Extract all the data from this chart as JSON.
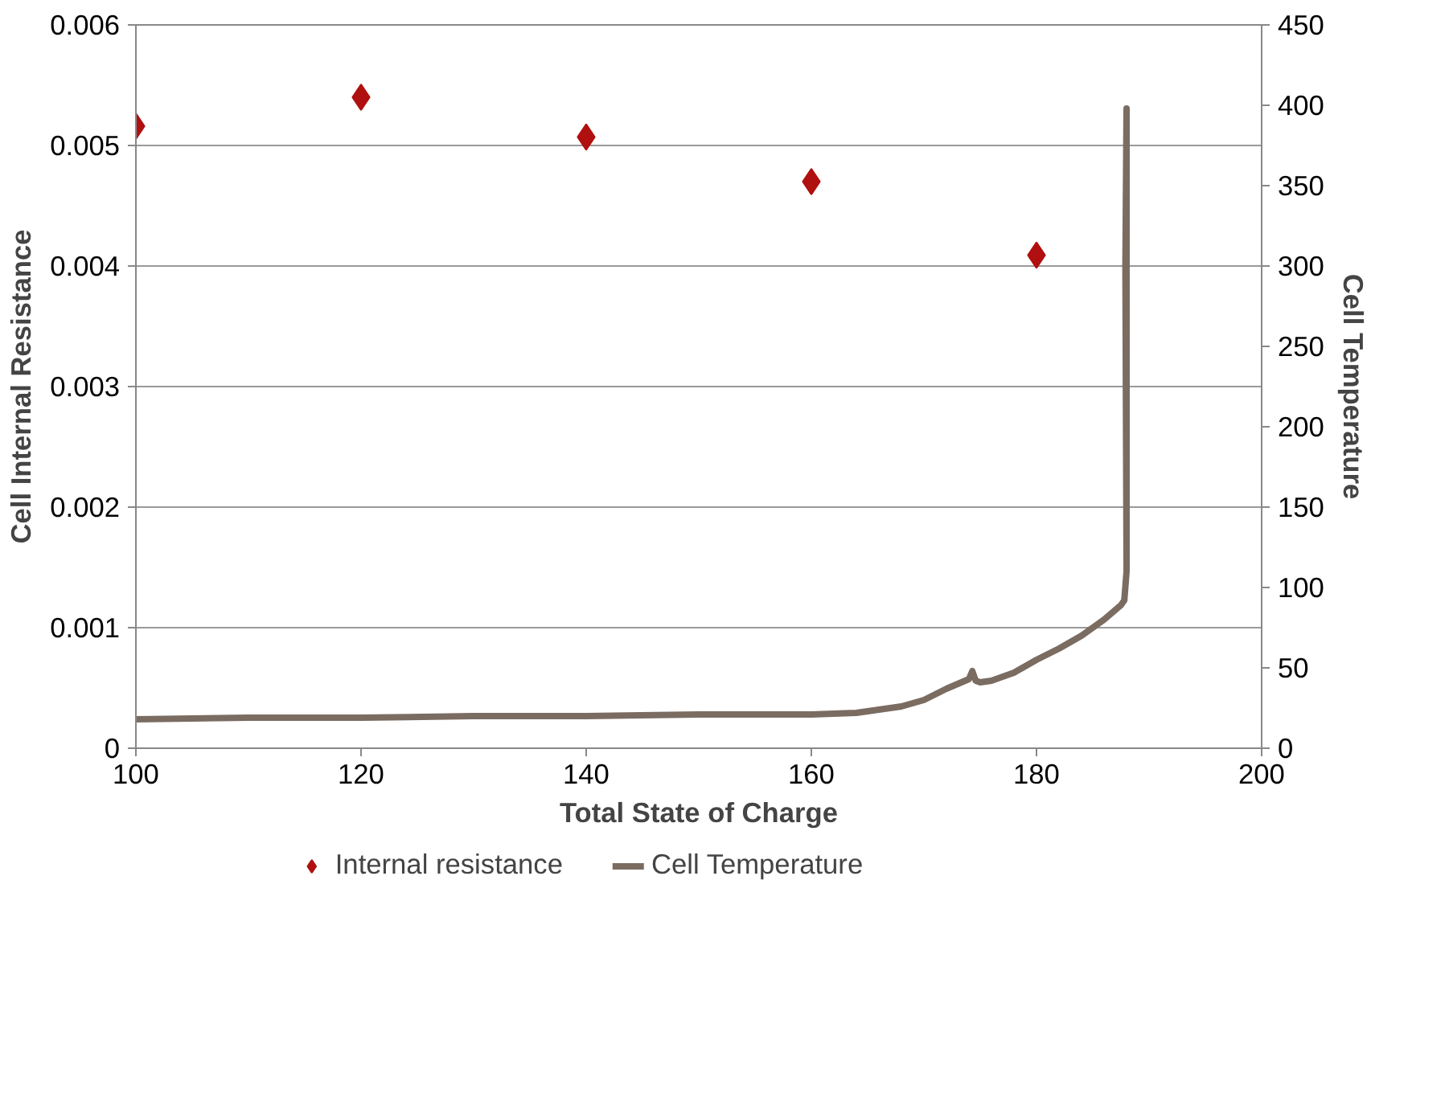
{
  "chart_data": {
    "type": "scatter",
    "xlabel": "Total State of Charge",
    "ylabel": "Cell Internal Resistance",
    "y2label": "Cell Temperature",
    "xlim": [
      100,
      200
    ],
    "xticks": [
      100,
      120,
      140,
      160,
      180,
      200
    ],
    "ylim": [
      0,
      0.006
    ],
    "yticks": [
      0,
      0.001,
      0.002,
      0.003,
      0.004,
      0.005,
      0.006
    ],
    "y2lim": [
      0,
      450
    ],
    "y2ticks": [
      0,
      50,
      100,
      150,
      200,
      250,
      300,
      350,
      400,
      450
    ],
    "grid": "y",
    "legend": "bottom",
    "series": [
      {
        "name": "Internal resistance",
        "marker": "diamond",
        "color": "#b01010",
        "x": [
          100,
          120,
          140,
          160,
          180
        ],
        "values": [
          0.00516,
          0.0054,
          0.00507,
          0.0047,
          0.00409
        ]
      },
      {
        "name": "Cell Temperature",
        "type": "line",
        "axis": "y2",
        "line_style": "solid",
        "color": "#7b6c62",
        "x": [
          100,
          110,
          120,
          130,
          140,
          150,
          160,
          164,
          168,
          170,
          172,
          174,
          174.3,
          174.6,
          175,
          176,
          178,
          180,
          182,
          184,
          186,
          187.5,
          187.8,
          188,
          188,
          187.9,
          188
        ],
        "values": [
          18,
          19,
          19,
          20,
          20,
          21,
          21,
          22,
          26,
          30,
          37,
          43,
          48,
          42,
          41,
          42,
          47,
          55,
          62,
          70,
          80,
          89,
          92,
          110,
          398,
          300,
          115
        ]
      }
    ]
  }
}
